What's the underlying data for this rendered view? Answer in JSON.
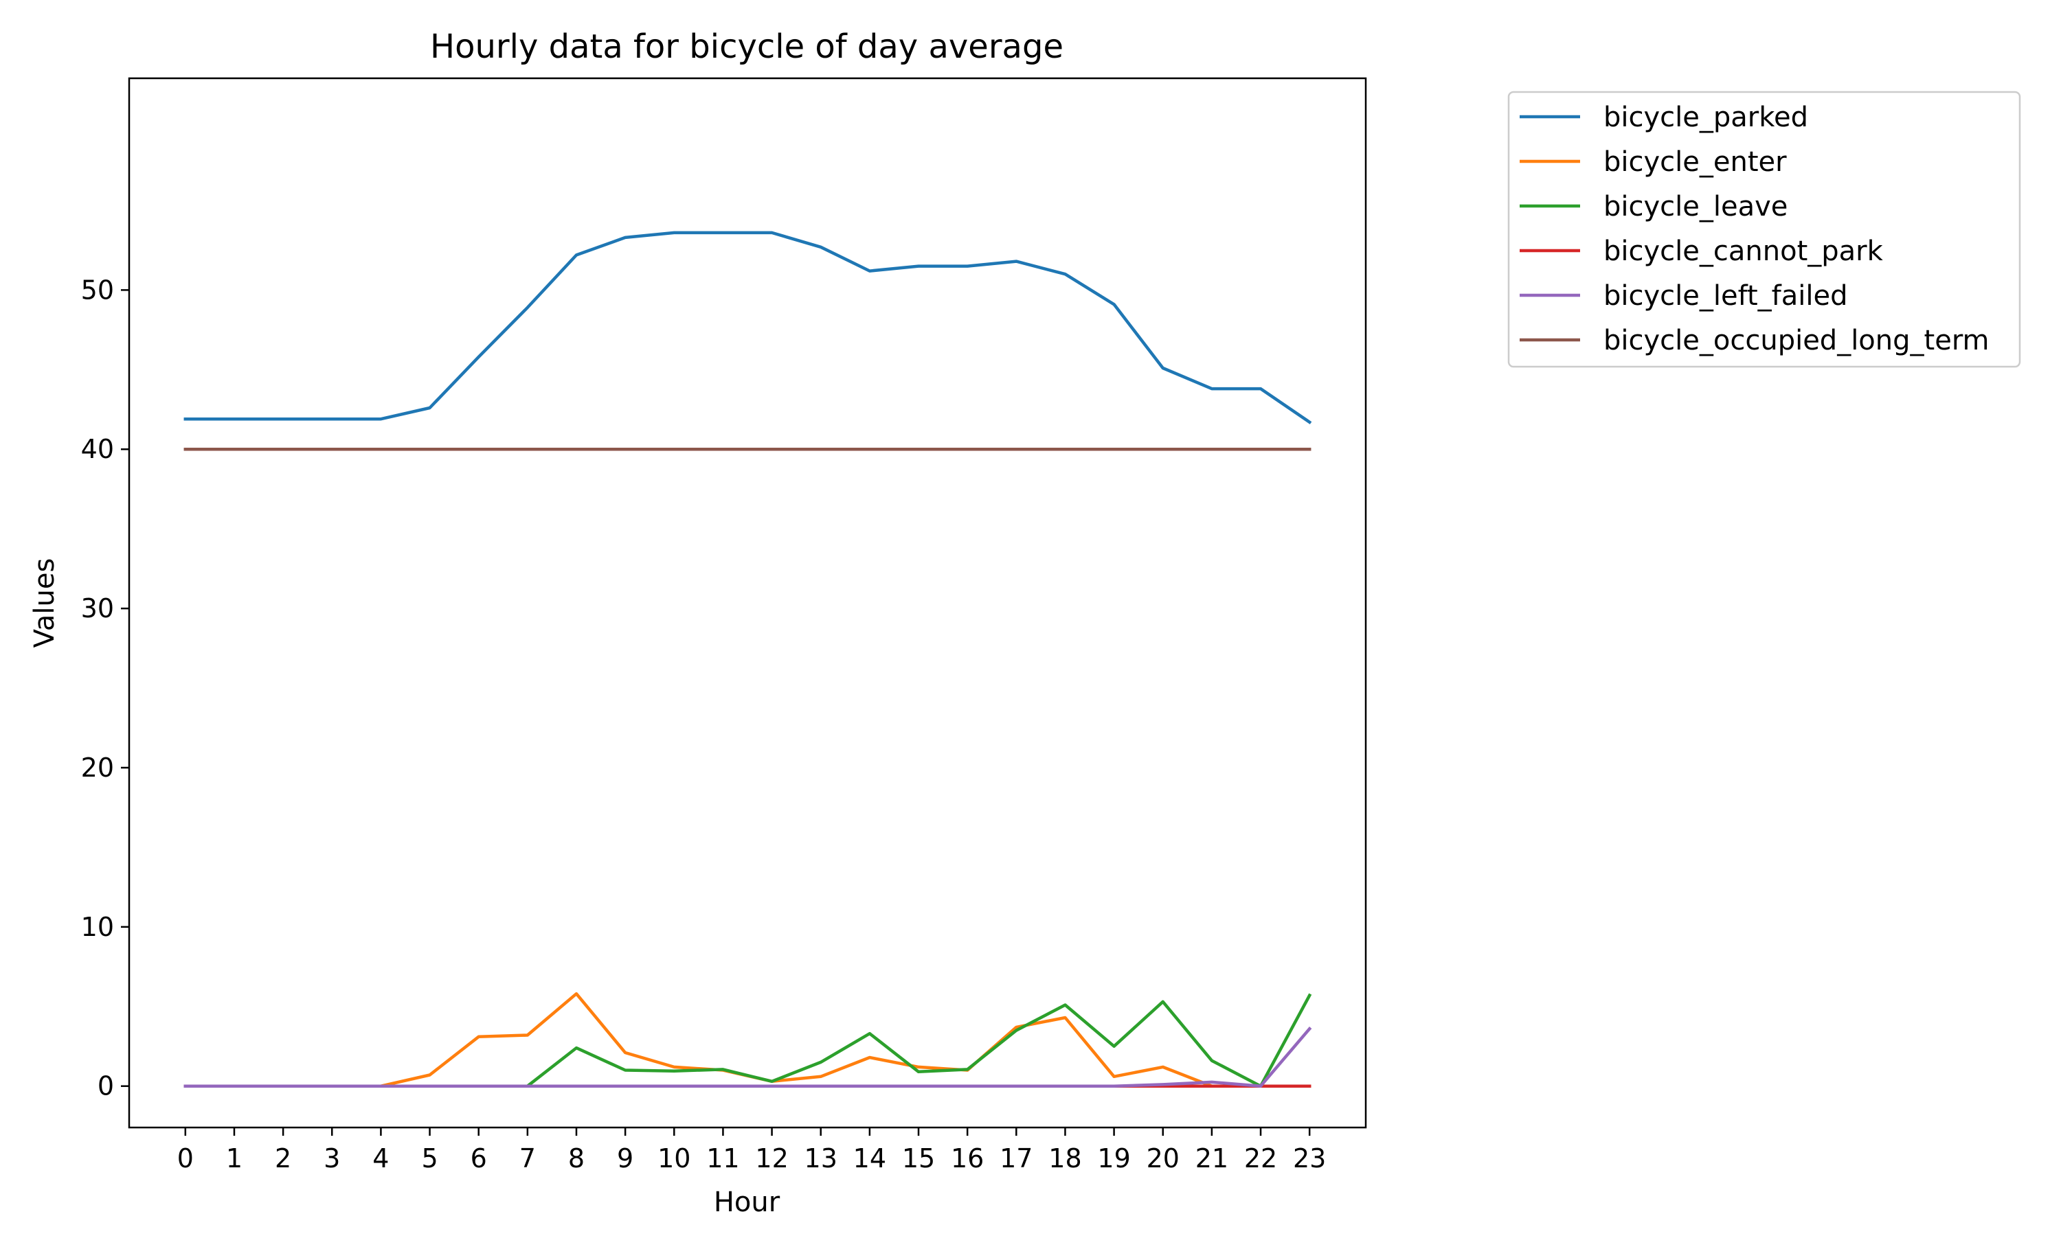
{
  "chart_data": {
    "type": "line",
    "title": "Hourly data for bicycle of day average",
    "xlabel": "Hour",
    "ylabel": "Values",
    "x": [
      0,
      1,
      2,
      3,
      4,
      5,
      6,
      7,
      8,
      9,
      10,
      11,
      12,
      13,
      14,
      15,
      16,
      17,
      18,
      19,
      20,
      21,
      22,
      23
    ],
    "x_tick_labels": [
      "0",
      "1",
      "2",
      "3",
      "4",
      "5",
      "6",
      "7",
      "8",
      "9",
      "10",
      "11",
      "12",
      "13",
      "14",
      "15",
      "16",
      "17",
      "18",
      "19",
      "20",
      "21",
      "22",
      "23"
    ],
    "y_ticks": [
      0,
      10,
      20,
      30,
      40,
      50
    ],
    "y_tick_labels": [
      "0",
      "10",
      "20",
      "30",
      "40",
      "50"
    ],
    "xlim": [
      -1.15,
      24.15
    ],
    "ylim": [
      -2.6,
      63.3
    ],
    "grid": false,
    "legend_position": "outside-top-right",
    "series": [
      {
        "name": "bicycle_parked",
        "color": "#1f77b4",
        "values": [
          41.9,
          41.9,
          41.9,
          41.9,
          41.9,
          42.6,
          45.8,
          48.9,
          52.2,
          53.3,
          53.6,
          53.6,
          53.6,
          52.7,
          51.2,
          51.5,
          51.5,
          51.8,
          51.0,
          49.1,
          45.1,
          43.8,
          43.8,
          41.7
        ]
      },
      {
        "name": "bicycle_enter",
        "color": "#ff7f0e",
        "values": [
          0,
          0,
          0,
          0,
          0,
          0.7,
          3.1,
          3.2,
          5.8,
          2.1,
          1.2,
          1.0,
          0.3,
          0.6,
          1.8,
          1.2,
          1.0,
          3.7,
          4.3,
          0.6,
          1.2,
          0,
          0,
          0
        ]
      },
      {
        "name": "bicycle_leave",
        "color": "#2ca02c",
        "values": [
          0,
          0,
          0,
          0,
          0,
          0,
          0,
          0,
          2.4,
          1.0,
          0.95,
          1.05,
          0.3,
          1.5,
          3.3,
          0.9,
          1.05,
          3.5,
          5.1,
          2.5,
          5.3,
          1.6,
          0,
          5.7
        ]
      },
      {
        "name": "bicycle_cannot_park",
        "color": "#d62728",
        "values": [
          0,
          0,
          0,
          0,
          0,
          0,
          0,
          0,
          0,
          0,
          0,
          0,
          0,
          0,
          0,
          0,
          0,
          0,
          0,
          0,
          0,
          0,
          0,
          0
        ]
      },
      {
        "name": "bicycle_left_failed",
        "color": "#9467bd",
        "values": [
          0,
          0,
          0,
          0,
          0,
          0,
          0,
          0,
          0,
          0,
          0,
          0,
          0,
          0,
          0,
          0,
          0,
          0,
          0,
          0,
          0.1,
          0.25,
          0,
          3.6
        ]
      },
      {
        "name": "bicycle_occupied_long_term",
        "color": "#8c564b",
        "values": [
          40,
          40,
          40,
          40,
          40,
          40,
          40,
          40,
          40,
          40,
          40,
          40,
          40,
          40,
          40,
          40,
          40,
          40,
          40,
          40,
          40,
          40,
          40,
          40
        ]
      }
    ]
  }
}
